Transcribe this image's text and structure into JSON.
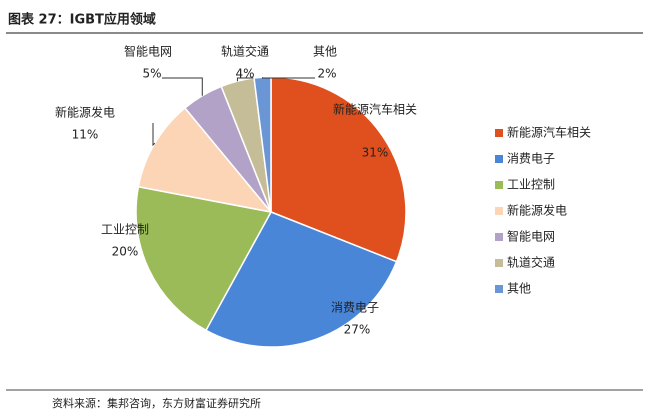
{
  "chart_data": {
    "type": "pie",
    "title": "图表 27：IGBT应用领域",
    "categories": [
      "新能源汽车相关",
      "消费电子",
      "工业控制",
      "新能源发电",
      "智能电网",
      "轨道交通",
      "其他"
    ],
    "values": [
      31,
      27,
      20,
      11,
      5,
      4,
      2
    ],
    "value_labels": [
      "31%",
      "27%",
      "20%",
      "11%",
      "5%",
      "4%",
      "2%"
    ],
    "colors": [
      "#e0501e",
      "#4a86d8",
      "#9bbb59",
      "#fbd5b5",
      "#b3a2c7",
      "#c4bd97",
      "#6a96d6"
    ],
    "legend": "right",
    "source": "资料来源：集邦咨询，东方财富证券研究所"
  }
}
